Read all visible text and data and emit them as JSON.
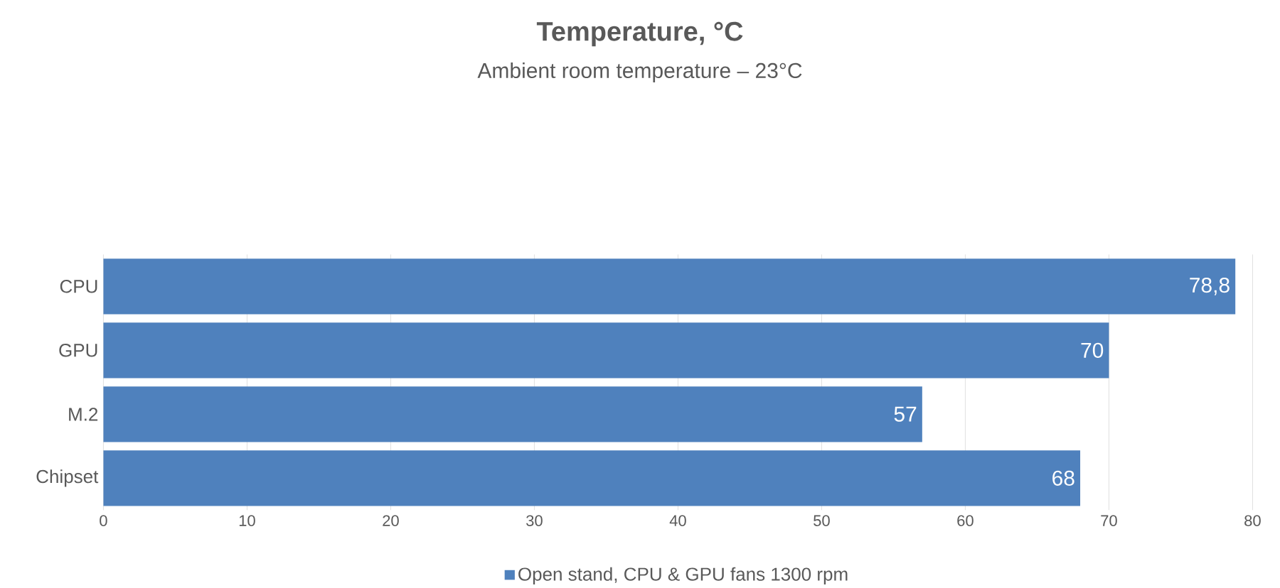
{
  "chart_data": {
    "type": "bar",
    "orientation": "horizontal",
    "title": "Temperature, °C",
    "subtitle": "Ambient room temperature – 23°C",
    "categories": [
      "CPU",
      "GPU",
      "M.2",
      "Chipset"
    ],
    "series": [
      {
        "name": "Open stand, CPU & GPU fans 1300 rpm",
        "color": "#4f81bd",
        "values": [
          78.8,
          70,
          57,
          68
        ],
        "value_labels": [
          "78,8",
          "70",
          "57",
          "68"
        ]
      }
    ],
    "xlim": [
      0,
      80
    ],
    "xticks": [
      0,
      10,
      20,
      30,
      40,
      50,
      60,
      70,
      80
    ],
    "grid": "x",
    "legend": "bottom"
  }
}
